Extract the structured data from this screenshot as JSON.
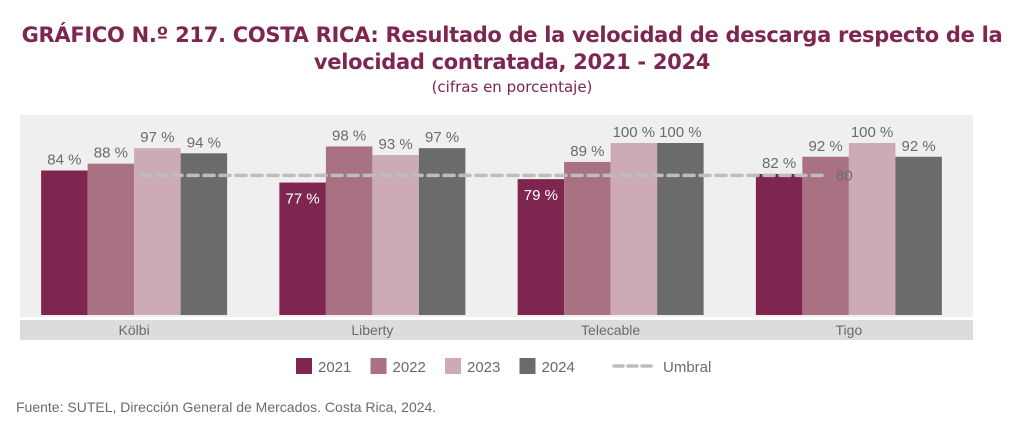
{
  "header": {
    "title_bold": "GRÁFICO N.º 217. COSTA RICA:",
    "title_rest_line1": " Resultado de la velocidad de descarga respecto de la",
    "title_line2": "velocidad contratada, 2021 - 2024",
    "subtitle": "(cifras en porcentaje)"
  },
  "footer": {
    "source": "Fuente: SUTEL, Dirección General de Mercados. Costa Rica, 2024."
  },
  "chart_data": {
    "type": "bar",
    "title": "GRÁFICO N.º 217. COSTA RICA: Resultado de la velocidad de descarga respecto de la velocidad contratada, 2021 - 2024",
    "subtitle": "(cifras en porcentaje)",
    "xlabel": "",
    "ylabel": "",
    "ylim": [
      0,
      100
    ],
    "grid": false,
    "legend_position": "bottom",
    "categories": [
      "Kölbi",
      "Liberty",
      "Telecable",
      "Tigo"
    ],
    "series": [
      {
        "name": "2021",
        "color": "#7e2650",
        "values": [
          84,
          77,
          79,
          82
        ]
      },
      {
        "name": "2022",
        "color": "#a87282",
        "values": [
          88,
          98,
          89,
          92
        ]
      },
      {
        "name": "2023",
        "color": "#cdabb5",
        "values": [
          97,
          93,
          100,
          100
        ]
      },
      {
        "name": "2024",
        "color": "#6b6b6e",
        "values": [
          94,
          97,
          100,
          92
        ]
      }
    ],
    "data_labels": [
      [
        "84 %",
        "77 %",
        "79 %",
        "82 %"
      ],
      [
        "88 %",
        "98 %",
        "89 %",
        "92 %"
      ],
      [
        "97 %",
        "93 %",
        "100 %",
        "100 %"
      ],
      [
        "94 %",
        "97 %",
        "100 %",
        "92 %"
      ]
    ],
    "threshold": {
      "name": "Umbral",
      "value": 80,
      "label": "80",
      "color": "#bdbdbd"
    },
    "plot_background": "#efefef",
    "category_band_color": "#dcdcdd"
  }
}
